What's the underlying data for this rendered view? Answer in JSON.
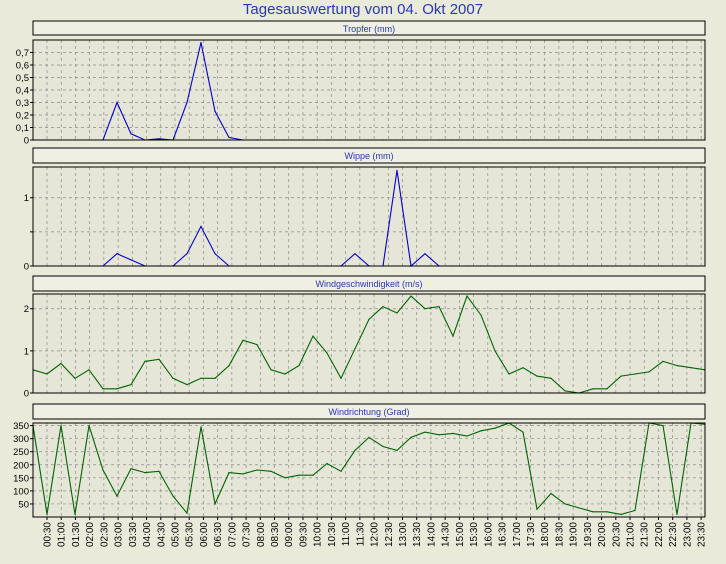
{
  "page_title": "Tagesauswertung vom 04. Okt 2007",
  "colors": {
    "background": "#eaeadb",
    "plot_background": "#e6e6d8",
    "grid": "#8a8a8a",
    "title": "#2838b0",
    "blue_series": "#0000cc",
    "green_series": "#006400"
  },
  "chart_data": [
    {
      "type": "line",
      "title": "Tropfer (mm)",
      "color": "#0000cc",
      "ylim": [
        0,
        0.8
      ],
      "yticks": [
        0,
        0.1,
        0.2,
        0.3,
        0.4,
        0.5,
        0.6,
        0.7
      ],
      "ytick_labels": [
        "0",
        "0,1",
        "0,2",
        "0,3",
        "0,4",
        "0,5",
        "0,6",
        "0,7"
      ],
      "grid": true,
      "y": [
        0,
        0,
        0,
        0,
        0,
        0,
        0.3,
        0.05,
        0,
        0.01,
        0,
        0.3,
        0.78,
        0.23,
        0.02,
        0,
        0,
        0,
        0,
        0,
        0,
        0,
        0,
        0,
        0,
        0,
        0,
        0,
        0,
        0,
        0,
        0,
        0,
        0,
        0,
        0,
        0,
        0,
        0,
        0,
        0,
        0,
        0,
        0,
        0,
        0,
        0,
        0,
        0
      ]
    },
    {
      "type": "line",
      "title": "Wippe (mm)",
      "color": "#0000cc",
      "ylim": [
        0,
        1.45
      ],
      "yticks": [
        0,
        0.5,
        1
      ],
      "ytick_labels": [
        "0",
        "",
        "1"
      ],
      "grid": true,
      "y": [
        0,
        0,
        0,
        0,
        0,
        0,
        0.18,
        0.09,
        0,
        0,
        0,
        0.18,
        0.58,
        0.18,
        0,
        0,
        0,
        0,
        0,
        0,
        0,
        0,
        0,
        0.18,
        0,
        0,
        1.4,
        0,
        0.18,
        0,
        0,
        0,
        0,
        0,
        0,
        0,
        0,
        0,
        0,
        0,
        0,
        0,
        0,
        0,
        0,
        0,
        0,
        0,
        0
      ]
    },
    {
      "type": "line",
      "title": "Windgeschwindigkeit (m/s)",
      "color": "#006400",
      "ylim": [
        0,
        2.35
      ],
      "yticks": [
        0,
        1,
        2
      ],
      "ytick_labels": [
        "0",
        "1",
        "2"
      ],
      "grid": true,
      "y": [
        0.55,
        0.45,
        0.7,
        0.35,
        0.55,
        0.1,
        0.1,
        0.2,
        0.75,
        0.8,
        0.35,
        0.2,
        0.35,
        0.35,
        0.65,
        1.25,
        1.15,
        0.55,
        0.45,
        0.65,
        1.35,
        0.95,
        0.35,
        1.05,
        1.75,
        2.05,
        1.9,
        2.3,
        2.0,
        2.05,
        1.35,
        2.3,
        1.85,
        1.0,
        0.45,
        0.6,
        0.4,
        0.35,
        0.05,
        0.0,
        0.1,
        0.1,
        0.4,
        0.45,
        0.5,
        0.75,
        0.65,
        0.6,
        0.55
      ]
    },
    {
      "type": "line",
      "title": "Windrichtung (Grad)",
      "color": "#006400",
      "ylim": [
        0,
        360
      ],
      "yticks": [
        50,
        100,
        150,
        200,
        250,
        300,
        350
      ],
      "ytick_labels": [
        "50",
        "100",
        "150",
        "200",
        "250",
        "300",
        "350"
      ],
      "grid": true,
      "y": [
        350,
        10,
        350,
        10,
        350,
        180,
        80,
        185,
        170,
        175,
        80,
        15,
        345,
        50,
        170,
        165,
        180,
        175,
        150,
        160,
        160,
        205,
        175,
        255,
        305,
        270,
        255,
        305,
        325,
        315,
        320,
        310,
        330,
        340,
        360,
        325,
        30,
        90,
        50,
        35,
        20,
        20,
        10,
        25,
        360,
        350,
        10,
        360,
        355
      ]
    }
  ],
  "x_axis": {
    "labels": [
      "00:30",
      "01:00",
      "01:30",
      "02:00",
      "02:30",
      "03:00",
      "03:30",
      "04:00",
      "04:30",
      "05:00",
      "05:30",
      "06:00",
      "06:30",
      "07:00",
      "07:30",
      "08:00",
      "08:30",
      "09:00",
      "09:30",
      "10:00",
      "10:30",
      "11:00",
      "11:30",
      "12:00",
      "12:30",
      "13:00",
      "13:30",
      "14:00",
      "14:30",
      "15:00",
      "15:30",
      "16:00",
      "16:30",
      "17:00",
      "17:30",
      "18:00",
      "18:30",
      "19:00",
      "19:30",
      "20:00",
      "20:30",
      "21:00",
      "21:30",
      "22:00",
      "22:30",
      "23:00",
      "23:30"
    ]
  }
}
